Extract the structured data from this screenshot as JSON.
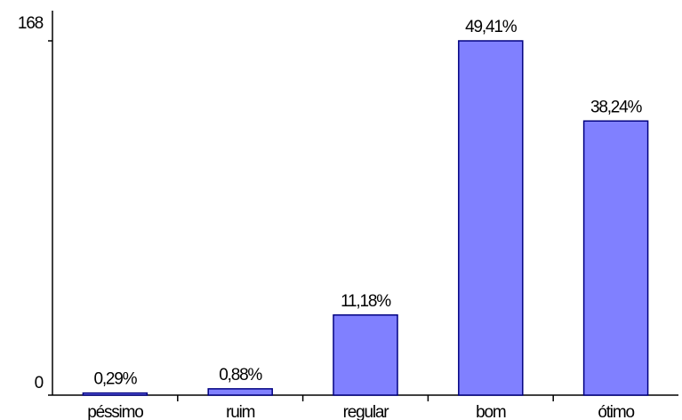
{
  "chart_data": {
    "type": "bar",
    "categories": [
      "péssimo",
      "ruim",
      "regular",
      "bom",
      "ótimo"
    ],
    "values": [
      1,
      3,
      38,
      168,
      130
    ],
    "data_labels": [
      "0,29%",
      "0,88%",
      "11,18%",
      "49,41%",
      "38,24%"
    ],
    "ylim": [
      0,
      168
    ],
    "y_tick_labels": [
      "0",
      "168"
    ],
    "title": "",
    "xlabel": "",
    "ylabel": "",
    "grid": false,
    "legend": "none",
    "bar_color": "#8080ff",
    "bar_edge_color": "#000080"
  }
}
